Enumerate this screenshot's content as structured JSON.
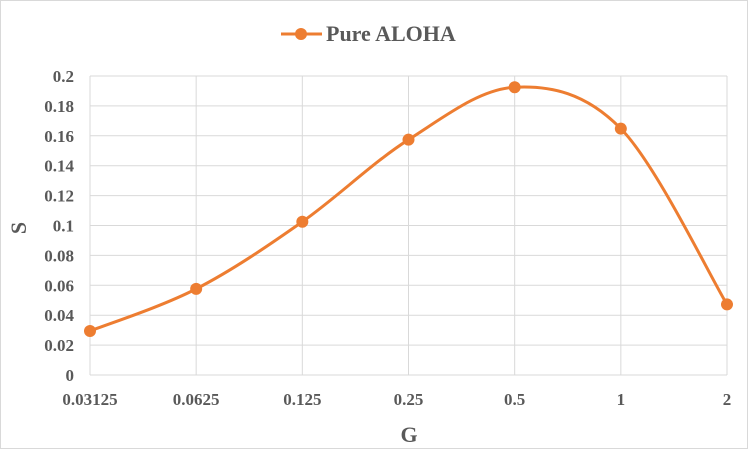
{
  "chart_data": {
    "type": "line",
    "smooth": true,
    "x_scale": "log2",
    "categories": [
      "0.03125",
      "0.0625",
      "0.125",
      "0.25",
      "0.5",
      "1",
      "2"
    ],
    "series": [
      {
        "name": "Pure ALOHA",
        "values": [
          0.0294,
          0.0576,
          0.1025,
          0.1574,
          0.1925,
          0.1648,
          0.0472
        ]
      }
    ],
    "xlabel": "G",
    "ylabel": "S",
    "ylim": [
      0,
      0.2
    ],
    "yticks": [
      "0",
      "0.02",
      "0.04",
      "0.06",
      "0.08",
      "0.1",
      "0.12",
      "0.14",
      "0.16",
      "0.18",
      "0.2"
    ],
    "grid": true,
    "legend_position": "top",
    "colors": {
      "series": "#ed7d31",
      "grid": "#d9d9d9",
      "text": "#595959"
    }
  }
}
